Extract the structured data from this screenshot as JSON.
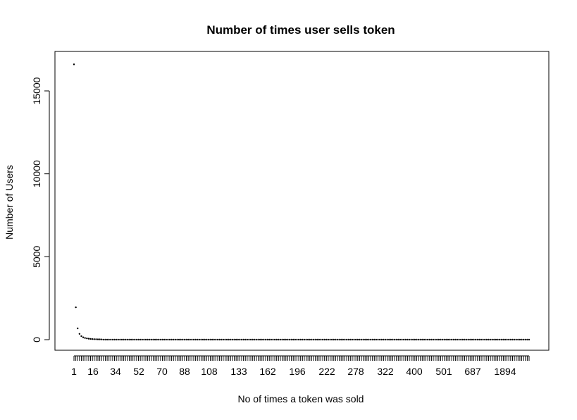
{
  "chart_data": {
    "type": "scatter",
    "title": "Number of times user sells token",
    "xlabel": "No of times a token was sold",
    "ylabel": "Number of Users",
    "x_tick_labels": [
      "1",
      "16",
      "34",
      "52",
      "70",
      "88",
      "108",
      "133",
      "162",
      "196",
      "222",
      "278",
      "322",
      "400",
      "501",
      "687",
      "1894"
    ],
    "y_ticks": [
      0,
      5000,
      10000,
      15000
    ],
    "y_tick_labels": [
      "0",
      "5000",
      "10000",
      "15000"
    ],
    "ylim": [
      -600,
      17200
    ],
    "category_count": 248,
    "points": [
      {
        "category_index": 1,
        "value": 16600
      },
      {
        "category_index": 2,
        "value": 1950
      },
      {
        "category_index": 3,
        "value": 680
      },
      {
        "category_index": 4,
        "value": 350
      },
      {
        "category_index": 5,
        "value": 210
      },
      {
        "category_index": 6,
        "value": 140
      },
      {
        "category_index": 7,
        "value": 100
      },
      {
        "category_index": 8,
        "value": 75
      },
      {
        "category_index": 9,
        "value": 58
      },
      {
        "category_index": 10,
        "value": 45
      },
      {
        "category_index": 11,
        "value": 36
      },
      {
        "category_index": 12,
        "value": 29
      },
      {
        "category_index": 13,
        "value": 24
      },
      {
        "category_index": 14,
        "value": 20
      },
      {
        "category_index": 15,
        "value": 17
      },
      {
        "category_index": 16,
        "value": 14
      }
    ],
    "tail_value": 3,
    "grid": false,
    "legend": "none"
  }
}
